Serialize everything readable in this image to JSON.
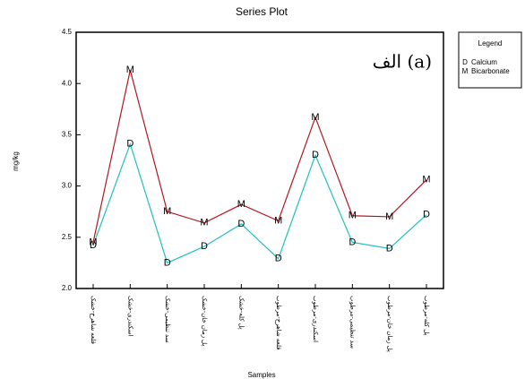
{
  "chart_data": {
    "type": "line",
    "title": "Series Plot",
    "y_label": "mg/kg",
    "x_label": "Samples",
    "annotation": "الف (a)",
    "legend_title": "Legend",
    "legend_position": "right",
    "categories": [
      "قلعه شاهرخ-خشک",
      "اسکندری-خشک",
      "سد تنظیمی-خشک",
      "پل زمان خان-خشک",
      "پل کله-خشک",
      "قلعه شاهرخ-مرطوب",
      "اسکندری-مرطوب",
      "سد تنظیمی-مرطوب",
      "پل زمان خان-مرطوب",
      "پل کله-مرطوب"
    ],
    "series": [
      {
        "name": "Calcium",
        "marker": "D",
        "color": "#1fbfbf",
        "values": [
          2.42,
          3.41,
          2.25,
          2.41,
          2.63,
          2.29,
          3.3,
          2.45,
          2.39,
          2.72
        ]
      },
      {
        "name": "Bicarbonate",
        "marker": "M",
        "color": "#b0171f",
        "values": [
          2.45,
          4.13,
          2.75,
          2.64,
          2.82,
          2.66,
          3.67,
          2.71,
          2.7,
          3.06
        ]
      }
    ],
    "ylim": [
      2,
      4.5
    ],
    "yticks": [
      {
        "value": 2,
        "label": "2.0"
      },
      2.5,
      {
        "value": 3,
        "label": "3.0"
      },
      3.5,
      {
        "value": 4,
        "label": "4.0"
      },
      4.5
    ]
  }
}
